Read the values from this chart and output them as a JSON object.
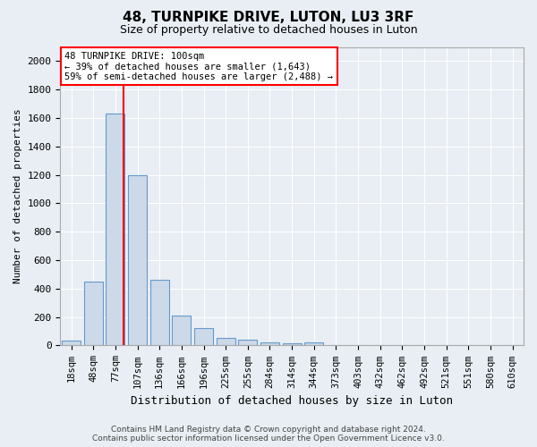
{
  "title": "48, TURNPIKE DRIVE, LUTON, LU3 3RF",
  "subtitle": "Size of property relative to detached houses in Luton",
  "xlabel": "Distribution of detached houses by size in Luton",
  "ylabel": "Number of detached properties",
  "categories": [
    "18sqm",
    "48sqm",
    "77sqm",
    "107sqm",
    "136sqm",
    "166sqm",
    "196sqm",
    "225sqm",
    "255sqm",
    "284sqm",
    "314sqm",
    "344sqm",
    "373sqm",
    "403sqm",
    "432sqm",
    "462sqm",
    "492sqm",
    "521sqm",
    "551sqm",
    "580sqm",
    "610sqm"
  ],
  "values": [
    35,
    450,
    1630,
    1200,
    460,
    210,
    125,
    50,
    40,
    20,
    15,
    20,
    0,
    0,
    0,
    0,
    0,
    0,
    0,
    0,
    0
  ],
  "bar_color": "#ccd9e8",
  "bar_edge_color": "#6699cc",
  "red_line_x": 2.35,
  "annotation_text": "48 TURNPIKE DRIVE: 100sqm\n← 39% of detached houses are smaller (1,643)\n59% of semi-detached houses are larger (2,488) →",
  "annotation_box_color": "white",
  "annotation_box_edge": "red",
  "ylim": [
    0,
    2100
  ],
  "yticks": [
    0,
    200,
    400,
    600,
    800,
    1000,
    1200,
    1400,
    1600,
    1800,
    2000
  ],
  "footer": "Contains HM Land Registry data © Crown copyright and database right 2024.\nContains public sector information licensed under the Open Government Licence v3.0.",
  "background_color": "#e8eef4",
  "plot_background": "#e8eef4",
  "title_fontsize": 11,
  "subtitle_fontsize": 9,
  "tick_fontsize": 7.5,
  "ytick_fontsize": 8,
  "xlabel_fontsize": 9,
  "ylabel_fontsize": 8
}
